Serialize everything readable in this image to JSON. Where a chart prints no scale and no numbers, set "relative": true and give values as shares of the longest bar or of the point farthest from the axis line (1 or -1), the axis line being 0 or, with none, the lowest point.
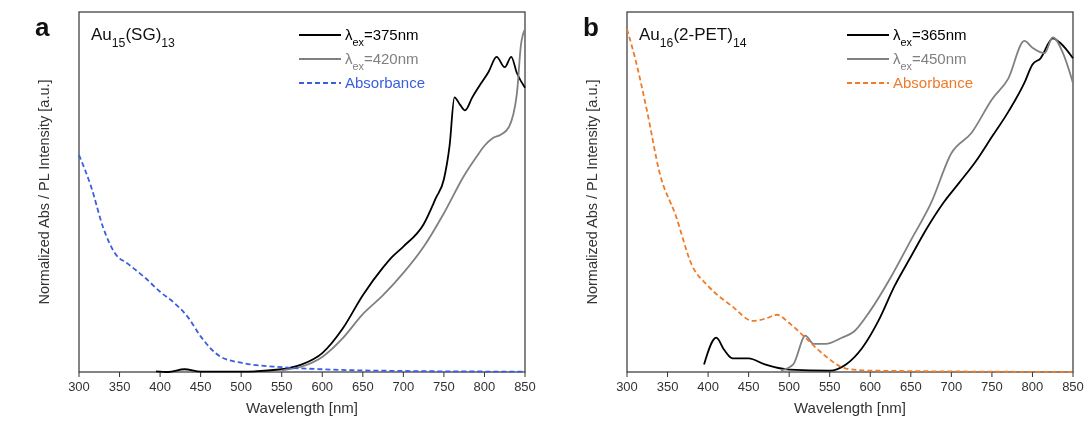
{
  "chart_data": [
    {
      "type": "line",
      "title": "Au$_{15}$(SG)$_{13}$",
      "xlabel": "Wavelength [nm]",
      "ylabel": "Normalized Abs / PL Intensity [a.u.]",
      "annotations": [
        "a"
      ],
      "relative": true,
      "xlim": [
        300,
        850
      ],
      "xticks": [
        300,
        350,
        400,
        450,
        500,
        550,
        600,
        650,
        700,
        750,
        800,
        850
      ],
      "legend": "top right",
      "series": [
        {
          "name": "λ$_{ex}$=375nm",
          "color": "#000000",
          "line_style": "solid",
          "x": [
            395,
            410,
            430,
            450,
            500,
            550,
            575,
            600,
            625,
            650,
            675,
            685,
            700,
            725,
            740,
            750,
            757,
            763,
            770,
            776,
            785,
            795,
            805,
            815,
            825,
            833,
            840,
            850
          ],
          "values": [
            0.002,
            0,
            0.008,
            0.001,
            0.001,
            0.008,
            0.022,
            0.055,
            0.126,
            0.224,
            0.305,
            0.333,
            0.366,
            0.431,
            0.507,
            0.562,
            0.66,
            0.801,
            0.779,
            0.763,
            0.801,
            0.839,
            0.875,
            0.919,
            0.889,
            0.919,
            0.872,
            0.829
          ]
        },
        {
          "name": "λ$_{ex}$=420nm",
          "color": "#808080",
          "line_style": "solid",
          "x": [
            550,
            575,
            600,
            625,
            650,
            675,
            700,
            725,
            750,
            775,
            790,
            800,
            810,
            820,
            830,
            840,
            845,
            850
          ],
          "values": [
            0.005,
            0.016,
            0.044,
            0.098,
            0.169,
            0.224,
            0.289,
            0.365,
            0.463,
            0.573,
            0.627,
            0.66,
            0.682,
            0.692,
            0.714,
            0.812,
            0.954,
            1
          ]
        },
        {
          "name": "Absorbance",
          "color": "#3a5ee0",
          "line_style": "dashed",
          "x": [
            300,
            315,
            330,
            345,
            360,
            380,
            400,
            420,
            435,
            450,
            475,
            500,
            550,
            600,
            700,
            850
          ],
          "values": [
            0.633,
            0.54,
            0.42,
            0.344,
            0.316,
            0.278,
            0.234,
            0.196,
            0.158,
            0.104,
            0.044,
            0.027,
            0.014,
            0.008,
            0.003,
            0.001
          ]
        }
      ]
    },
    {
      "type": "line",
      "title": "Au$_{16}$(2-PET)$_{14}$",
      "xlabel": "Wavelength [nm]",
      "ylabel": "Normalized Abs / PL Intensity [a.u.]",
      "annotations": [
        "b"
      ],
      "relative": true,
      "xlim": [
        300,
        850
      ],
      "xticks": [
        300,
        350,
        400,
        450,
        500,
        550,
        600,
        650,
        700,
        750,
        800,
        850
      ],
      "legend": "top right",
      "series": [
        {
          "name": "λ$_{ex}$=365nm",
          "color": "#000000",
          "line_style": "solid",
          "x": [
            395,
            410,
            420,
            430,
            450,
            470,
            500,
            550,
            570,
            590,
            610,
            630,
            650,
            670,
            690,
            710,
            730,
            750,
            770,
            790,
            800,
            810,
            825,
            835,
            850
          ],
          "values": [
            0.022,
            0.1,
            0.064,
            0.04,
            0.04,
            0.022,
            0.007,
            0.004,
            0.022,
            0.07,
            0.149,
            0.251,
            0.336,
            0.42,
            0.493,
            0.553,
            0.614,
            0.686,
            0.758,
            0.843,
            0.897,
            0.915,
            0.973,
            0.958,
            0.915
          ]
        },
        {
          "name": "λ$_{ex}$=450nm",
          "color": "#808080",
          "line_style": "solid",
          "x": [
            490,
            505,
            520,
            530,
            545,
            565,
            580,
            600,
            625,
            650,
            675,
            700,
            725,
            750,
            770,
            790,
            800,
            815,
            825,
            838,
            850
          ],
          "values": [
            0.004,
            0.022,
            0.106,
            0.082,
            0.082,
            0.1,
            0.118,
            0.179,
            0.275,
            0.384,
            0.493,
            0.638,
            0.698,
            0.795,
            0.855,
            0.966,
            0.946,
            0.93,
            0.976,
            0.928,
            0.843
          ]
        },
        {
          "name": "Absorbance",
          "color": "#f07a2a",
          "line_style": "dashed",
          "x": [
            300,
            310,
            325,
            340,
            360,
            380,
            400,
            430,
            455,
            470,
            485,
            500,
            520,
            545,
            570,
            600,
            850
          ],
          "values": [
            1,
            0.915,
            0.758,
            0.583,
            0.457,
            0.312,
            0.251,
            0.191,
            0.149,
            0.155,
            0.167,
            0.143,
            0.1,
            0.046,
            0.01,
            0.004,
            0
          ]
        }
      ]
    }
  ]
}
